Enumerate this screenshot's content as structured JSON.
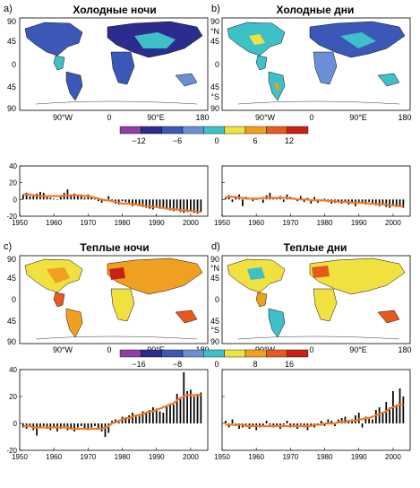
{
  "panels": [
    {
      "letter": "a)",
      "title": "Холодные ночи"
    },
    {
      "letter": "b)",
      "title": "Холодные дни"
    },
    {
      "letter": "c)",
      "title": "Теплые ночи"
    },
    {
      "letter": "d)",
      "title": "Теплые дни"
    }
  ],
  "map_axes": {
    "lat_left": [
      "90",
      "45",
      "0",
      "45",
      "90"
    ],
    "lat_mid": [
      "90",
      "°N",
      "45",
      "0",
      "45",
      "°S",
      "90"
    ],
    "lon": [
      "90°W",
      "0",
      "90°E",
      "180",
      "90°W",
      "0",
      "90°E",
      "180"
    ]
  },
  "colorbars": [
    {
      "labels": [
        "−12",
        "−6",
        "0",
        "6",
        "12"
      ],
      "colors": [
        "#8e3fa6",
        "#2c2c8e",
        "#3b58b8",
        "#6b8fd6",
        "#3ec0c8",
        "#f0e040",
        "#f0a020",
        "#e65a1c",
        "#c82014"
      ]
    },
    {
      "labels": [
        "−16",
        "−8",
        "0",
        "8",
        "16"
      ],
      "colors": [
        "#8e3fa6",
        "#2c2c8e",
        "#3b58b8",
        "#6b8fd6",
        "#3ec0c8",
        "#f0e040",
        "#f0a020",
        "#e65a1c",
        "#c82014"
      ]
    }
  ],
  "colors": {
    "trend": "#f07a2a",
    "bar": "#000000",
    "land_cold": "#3b58b8",
    "land_warm": "#f0a020"
  },
  "chart_data": [
    {
      "type": "bar",
      "id": "a",
      "x": [
        1951,
        1952,
        1953,
        1954,
        1955,
        1956,
        1957,
        1958,
        1959,
        1960,
        1961,
        1962,
        1963,
        1964,
        1965,
        1966,
        1967,
        1968,
        1969,
        1970,
        1971,
        1972,
        1973,
        1974,
        1975,
        1976,
        1977,
        1978,
        1979,
        1980,
        1981,
        1982,
        1983,
        1984,
        1985,
        1986,
        1987,
        1988,
        1989,
        1990,
        1991,
        1992,
        1993,
        1994,
        1995,
        1996,
        1997,
        1998,
        1999,
        2000,
        2001,
        2002,
        2003
      ],
      "values": [
        6,
        8,
        4,
        5,
        7,
        9,
        8,
        3,
        2,
        1,
        0,
        3,
        8,
        12,
        6,
        7,
        5,
        4,
        2,
        6,
        3,
        1,
        -2,
        -4,
        -1,
        4,
        -3,
        -5,
        -6,
        -2,
        -3,
        -5,
        -8,
        -6,
        -7,
        -9,
        -10,
        -11,
        -12,
        -9,
        -11,
        -10,
        -12,
        -13,
        -14,
        -12,
        -15,
        -16,
        -15,
        -14,
        -16,
        -17,
        -15
      ],
      "trend": [
        6,
        6,
        6,
        5,
        5,
        4,
        4,
        4,
        4,
        4,
        4,
        4,
        5,
        5,
        5,
        5,
        5,
        5,
        4,
        4,
        3,
        2,
        1,
        0,
        -1,
        -1,
        -2,
        -3,
        -4,
        -5,
        -5,
        -5,
        -6,
        -6,
        -7,
        -7,
        -8,
        -8,
        -9,
        -9,
        -10,
        -10,
        -11,
        -11,
        -12,
        -12,
        -13,
        -13,
        -13,
        -14,
        -14,
        -15,
        -15
      ],
      "ylim": [
        -20,
        40
      ],
      "yticks": [
        "40",
        "20",
        "0",
        "-20"
      ],
      "xticks": [
        "1950",
        "1960",
        "1970",
        "1980",
        "1990",
        "2000"
      ]
    },
    {
      "type": "bar",
      "id": "b",
      "x": [
        1951,
        1952,
        1953,
        1954,
        1955,
        1956,
        1957,
        1958,
        1959,
        1960,
        1961,
        1962,
        1963,
        1964,
        1965,
        1966,
        1967,
        1968,
        1969,
        1970,
        1971,
        1972,
        1973,
        1974,
        1975,
        1976,
        1977,
        1978,
        1979,
        1980,
        1981,
        1982,
        1983,
        1984,
        1985,
        1986,
        1987,
        1988,
        1989,
        1990,
        1991,
        1992,
        1993,
        1994,
        1995,
        1996,
        1997,
        1998,
        1999,
        2000,
        2001,
        2002,
        2003
      ],
      "values": [
        2,
        5,
        -3,
        4,
        6,
        -8,
        3,
        1,
        -2,
        0,
        2,
        -4,
        5,
        8,
        3,
        2,
        4,
        -3,
        6,
        3,
        1,
        -2,
        4,
        -3,
        2,
        -5,
        3,
        -4,
        -2,
        1,
        -3,
        -5,
        -4,
        -3,
        -5,
        -2,
        -6,
        -3,
        -8,
        -5,
        -4,
        -6,
        -3,
        -5,
        -7,
        -8,
        -6,
        -9,
        -10,
        -7,
        -8,
        -9,
        -10
      ],
      "trend": [
        3,
        3,
        3,
        3,
        2,
        2,
        1,
        1,
        1,
        1,
        1,
        2,
        2,
        2,
        2,
        2,
        2,
        2,
        2,
        1,
        1,
        0,
        0,
        0,
        0,
        -1,
        -1,
        -1,
        -1,
        -1,
        -2,
        -2,
        -2,
        -3,
        -3,
        -3,
        -3,
        -4,
        -4,
        -4,
        -4,
        -4,
        -5,
        -5,
        -5,
        -6,
        -6,
        -6,
        -7,
        -7,
        -8,
        -8,
        -8
      ],
      "ylim": [
        -20,
        40
      ],
      "yticks": [],
      "xticks": [
        "1950",
        "1960",
        "1970",
        "1980",
        "1990",
        "2000"
      ]
    },
    {
      "type": "bar",
      "id": "c",
      "x": [
        1951,
        1952,
        1953,
        1954,
        1955,
        1956,
        1957,
        1958,
        1959,
        1960,
        1961,
        1962,
        1963,
        1964,
        1965,
        1966,
        1967,
        1968,
        1969,
        1970,
        1971,
        1972,
        1973,
        1974,
        1975,
        1976,
        1977,
        1978,
        1979,
        1980,
        1981,
        1982,
        1983,
        1984,
        1985,
        1986,
        1987,
        1988,
        1989,
        1990,
        1991,
        1992,
        1993,
        1994,
        1995,
        1996,
        1997,
        1998,
        1999,
        2000,
        2001,
        2002,
        2003
      ],
      "values": [
        -3,
        -4,
        -2,
        -5,
        -9,
        -3,
        -2,
        -4,
        -5,
        -3,
        -6,
        -4,
        -3,
        -5,
        -4,
        -6,
        -3,
        -2,
        -4,
        -5,
        -3,
        -2,
        -4,
        -6,
        -10,
        -7,
        2,
        3,
        1,
        5,
        4,
        6,
        8,
        5,
        7,
        9,
        8,
        10,
        12,
        11,
        9,
        8,
        13,
        15,
        14,
        22,
        18,
        38,
        24,
        25,
        20,
        22,
        23
      ],
      "trend": [
        -2,
        -2,
        -2,
        -3,
        -3,
        -3,
        -3,
        -3,
        -3,
        -3,
        -3,
        -3,
        -3,
        -3,
        -4,
        -4,
        -4,
        -4,
        -4,
        -4,
        -4,
        -4,
        -4,
        -4,
        -3,
        -2,
        0,
        1,
        2,
        3,
        4,
        4,
        5,
        6,
        6,
        7,
        8,
        9,
        9,
        10,
        11,
        12,
        13,
        14,
        15,
        17,
        19,
        20,
        21,
        21,
        21,
        21,
        21
      ],
      "ylim": [
        -20,
        40
      ],
      "yticks": [
        "40",
        "20",
        "0",
        "-20"
      ],
      "xticks": [
        "1950",
        "1960",
        "1970",
        "1980",
        "1990",
        "2000"
      ]
    },
    {
      "type": "bar",
      "id": "d",
      "x": [
        1951,
        1952,
        1953,
        1954,
        1955,
        1956,
        1957,
        1958,
        1959,
        1960,
        1961,
        1962,
        1963,
        1964,
        1965,
        1966,
        1967,
        1968,
        1969,
        1970,
        1971,
        1972,
        1973,
        1974,
        1975,
        1976,
        1977,
        1978,
        1979,
        1980,
        1981,
        1982,
        1983,
        1984,
        1985,
        1986,
        1987,
        1988,
        1989,
        1990,
        1991,
        1992,
        1993,
        1994,
        1995,
        1996,
        1997,
        1998,
        1999,
        2000,
        2001,
        2002,
        2003
      ],
      "values": [
        2,
        -3,
        3,
        -2,
        -4,
        -3,
        -1,
        -4,
        -2,
        -5,
        -3,
        -2,
        2,
        -1,
        -3,
        -2,
        -4,
        -1,
        2,
        -3,
        -2,
        -4,
        -1,
        -3,
        -5,
        -2,
        -3,
        -1,
        2,
        -2,
        3,
        2,
        -2,
        3,
        4,
        5,
        2,
        3,
        6,
        8,
        -3,
        5,
        4,
        3,
        10,
        12,
        8,
        16,
        12,
        24,
        14,
        26,
        20
      ],
      "trend": [
        -1,
        -1,
        -1,
        -1,
        -1,
        -1,
        -2,
        -2,
        -2,
        -2,
        -2,
        -2,
        -2,
        -2,
        -2,
        -2,
        -2,
        -2,
        -2,
        -2,
        -2,
        -2,
        -2,
        -2,
        -2,
        -2,
        -1,
        -1,
        -1,
        0,
        0,
        0,
        0,
        1,
        1,
        1,
        2,
        2,
        2,
        3,
        3,
        4,
        4,
        5,
        6,
        7,
        8,
        9,
        11,
        12,
        13,
        14,
        14
      ],
      "ylim": [
        -20,
        40
      ],
      "yticks": [],
      "xticks": [
        "1950",
        "1960",
        "1970",
        "1980",
        "1990",
        "2000"
      ]
    }
  ]
}
